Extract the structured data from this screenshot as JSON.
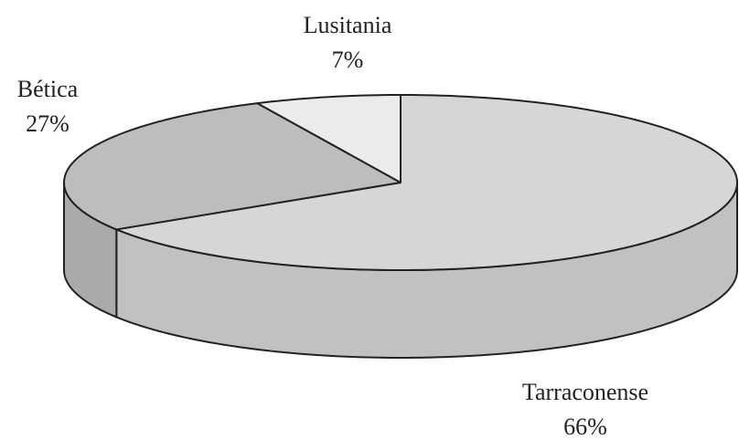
{
  "chart_data": {
    "type": "pie",
    "categories": [
      "Tarraconense",
      "Bética",
      "Lusitania"
    ],
    "values": [
      66,
      27,
      7
    ],
    "value_labels": [
      "66%",
      "27%",
      "7%"
    ],
    "colors": [
      "#d6d6d6",
      "#bdbdbd",
      "#ebebeb"
    ]
  }
}
